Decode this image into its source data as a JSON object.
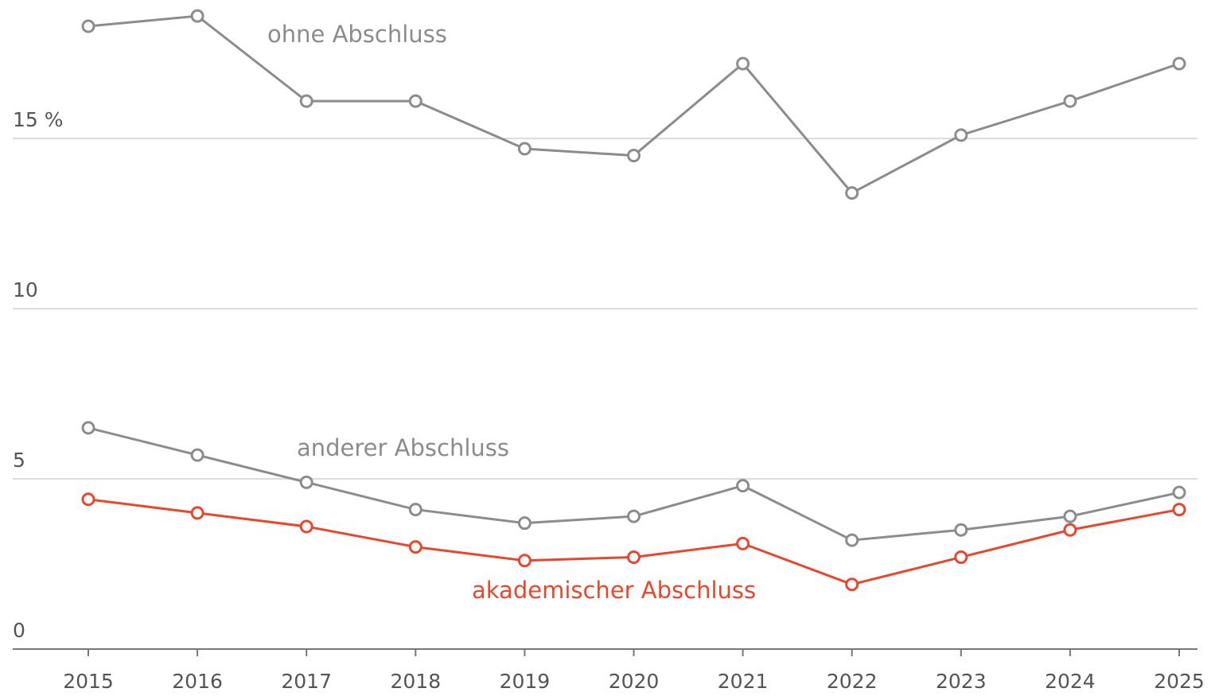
{
  "chart_data": {
    "type": "line",
    "x": [
      2015,
      2016,
      2017,
      2018,
      2019,
      2020,
      2021,
      2022,
      2023,
      2024,
      2025
    ],
    "series": [
      {
        "name": "ohne Abschluss",
        "color": "#8c8c8c",
        "values": [
          18.3,
          18.6,
          16.1,
          16.1,
          14.7,
          14.5,
          17.2,
          13.4,
          15.1,
          16.1,
          17.2
        ]
      },
      {
        "name": "anderer Abschluss",
        "color": "#8c8c8c",
        "values": [
          6.5,
          5.7,
          4.9,
          4.1,
          3.7,
          3.9,
          4.8,
          3.2,
          3.5,
          3.9,
          4.6
        ]
      },
      {
        "name": "akademischer Abschluss",
        "color": "#e8472d",
        "values": [
          4.4,
          4.0,
          3.6,
          3.0,
          2.6,
          2.7,
          3.1,
          1.9,
          2.7,
          3.5,
          4.1
        ]
      }
    ],
    "ylim": [
      0,
      19
    ],
    "yticks": [
      0,
      5,
      10,
      {
        "value": 15,
        "label": "15 %"
      }
    ],
    "xlim": [
      2015,
      2025
    ],
    "grid": true
  }
}
